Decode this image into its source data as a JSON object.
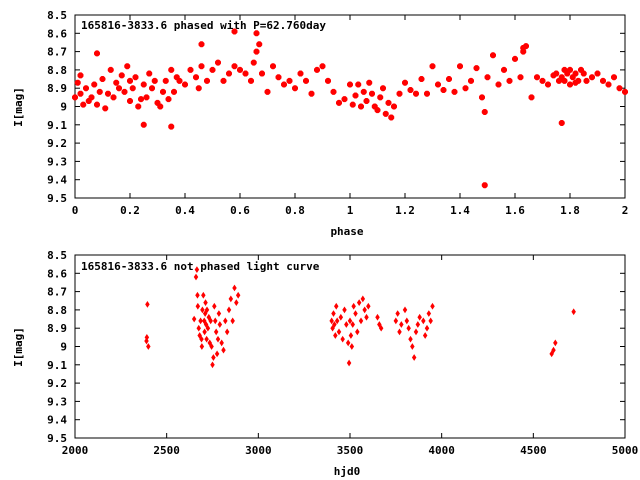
{
  "chart_data": [
    {
      "type": "scatter",
      "title": "165816-3833.6 phased with P=62.760day",
      "xlabel": "phase",
      "ylabel": "I[mag]",
      "xlim": [
        0,
        2
      ],
      "ylim": [
        9.5,
        8.5
      ],
      "y_inverted": true,
      "xticks": [
        "0",
        "0.2",
        "0.4",
        "0.6",
        "0.8",
        "1",
        "1.2",
        "1.4",
        "1.6",
        "1.8",
        "2"
      ],
      "yticks": [
        "8.5",
        "8.6",
        "8.7",
        "8.8",
        "8.9",
        "9",
        "9.1",
        "9.2",
        "9.3",
        "9.4",
        "9.5"
      ],
      "marker": "star",
      "color": "#ff0000",
      "series": [
        {
          "x": [
            0.0,
            0.01,
            0.02,
            0.02,
            0.03,
            0.04,
            0.05,
            0.06,
            0.07,
            0.08,
            0.08,
            0.09,
            0.1,
            0.11,
            0.12,
            0.13,
            0.14,
            0.15,
            0.16,
            0.17,
            0.18,
            0.19,
            0.2,
            0.2,
            0.21,
            0.22,
            0.23,
            0.24,
            0.25,
            0.26,
            0.27,
            0.28,
            0.29,
            0.3,
            0.31,
            0.32,
            0.33,
            0.34,
            0.35,
            0.36,
            0.37,
            0.38,
            0.4,
            0.42,
            0.44,
            0.45,
            0.46,
            0.48,
            0.5,
            0.52,
            0.54,
            0.56,
            0.58,
            0.6,
            0.62,
            0.64,
            0.65,
            0.66,
            0.67,
            0.68,
            0.7,
            0.72,
            0.74,
            0.76,
            0.78,
            0.8,
            0.82,
            0.84,
            0.86,
            0.88,
            0.9,
            0.92,
            0.94,
            0.96,
            0.98,
            1.0,
            1.01,
            1.02,
            1.03,
            1.04,
            1.05,
            1.06,
            1.07,
            1.08,
            1.09,
            1.1,
            1.11,
            1.12,
            1.13,
            1.14,
            1.15,
            1.16,
            1.18,
            1.2,
            1.22,
            1.24,
            1.26,
            1.28,
            1.3,
            1.32,
            1.34,
            1.36,
            1.38,
            1.4,
            1.42,
            1.44,
            1.46,
            1.48,
            1.49,
            1.5,
            1.52,
            1.54,
            1.56,
            1.58,
            1.6,
            1.62,
            1.63,
            1.64,
            1.66,
            1.68,
            1.7,
            1.72,
            1.74,
            1.75,
            1.76,
            1.77,
            1.78,
            1.78,
            1.79,
            1.8,
            1.8,
            1.81,
            1.82,
            1.82,
            1.83,
            1.84,
            1.85,
            1.86,
            1.88,
            1.9,
            1.92,
            1.94,
            1.96,
            1.98,
            2.0,
            0.25,
            0.35,
            0.58,
            0.46,
            0.66,
            1.49,
            1.63,
            1.77
          ],
          "y": [
            8.95,
            8.87,
            8.93,
            8.83,
            8.99,
            8.9,
            8.97,
            8.95,
            8.88,
            8.99,
            8.71,
            8.92,
            8.85,
            9.01,
            8.93,
            8.8,
            8.95,
            8.87,
            8.9,
            8.83,
            8.92,
            8.78,
            8.86,
            8.97,
            8.9,
            8.84,
            9.0,
            8.96,
            8.88,
            8.95,
            8.82,
            8.9,
            8.86,
            8.98,
            9.0,
            8.92,
            8.86,
            8.96,
            8.8,
            8.92,
            8.84,
            8.86,
            8.88,
            8.8,
            8.84,
            8.9,
            8.78,
            8.86,
            8.8,
            8.76,
            8.86,
            8.82,
            8.78,
            8.8,
            8.82,
            8.86,
            8.76,
            8.7,
            8.66,
            8.82,
            8.92,
            8.78,
            8.84,
            8.88,
            8.86,
            8.9,
            8.82,
            8.86,
            8.93,
            8.8,
            8.78,
            8.86,
            8.92,
            8.98,
            8.96,
            8.88,
            8.99,
            8.94,
            8.88,
            9.0,
            8.92,
            8.97,
            8.87,
            8.93,
            9.0,
            9.02,
            8.95,
            8.9,
            9.04,
            8.98,
            9.06,
            9.0,
            8.93,
            8.87,
            8.91,
            8.93,
            8.85,
            8.93,
            8.78,
            8.88,
            8.91,
            8.85,
            8.92,
            8.78,
            8.9,
            8.86,
            8.79,
            8.95,
            9.03,
            8.84,
            8.72,
            8.88,
            8.8,
            8.86,
            8.74,
            8.84,
            8.7,
            8.67,
            8.95,
            8.84,
            8.86,
            8.88,
            8.83,
            8.82,
            8.86,
            8.84,
            8.8,
            8.86,
            8.82,
            8.88,
            8.8,
            8.84,
            8.87,
            8.82,
            8.86,
            8.8,
            8.82,
            8.86,
            8.84,
            8.82,
            8.86,
            8.88,
            8.84,
            8.9,
            8.92,
            9.1,
            9.11,
            8.59,
            8.66,
            8.6,
            9.43,
            8.68,
            9.09
          ]
        }
      ]
    },
    {
      "type": "scatter",
      "title": "165816-3833.6 not phased light curve",
      "xlabel": "hjd0",
      "ylabel": "I[mag]",
      "xlim": [
        2000,
        5000
      ],
      "ylim": [
        9.5,
        8.5
      ],
      "y_inverted": true,
      "xticks": [
        "2000",
        "2500",
        "3000",
        "3500",
        "4000",
        "4500",
        "5000"
      ],
      "yticks": [
        "8.5",
        "8.6",
        "8.7",
        "8.8",
        "8.9",
        "9",
        "9.1",
        "9.2",
        "9.3",
        "9.4",
        "9.5"
      ],
      "marker": "diamond",
      "color": "#ff0000",
      "series": [
        {
          "x": [
            2390,
            2392,
            2395,
            2400,
            2650,
            2660,
            2665,
            2668,
            2670,
            2675,
            2680,
            2685,
            2690,
            2692,
            2695,
            2700,
            2705,
            2707,
            2710,
            2712,
            2715,
            2718,
            2720,
            2725,
            2730,
            2735,
            2740,
            2745,
            2750,
            2755,
            2760,
            2765,
            2770,
            2775,
            2780,
            2785,
            2790,
            2800,
            2810,
            2820,
            2830,
            2840,
            2850,
            2860,
            2870,
            2880,
            2890,
            3400,
            3405,
            3410,
            3415,
            3420,
            3425,
            3430,
            3440,
            3450,
            3460,
            3470,
            3480,
            3490,
            3495,
            3500,
            3505,
            3510,
            3515,
            3520,
            3530,
            3540,
            3550,
            3560,
            3570,
            3580,
            3590,
            3600,
            3650,
            3660,
            3670,
            3750,
            3760,
            3770,
            3780,
            3800,
            3810,
            3820,
            3830,
            3840,
            3850,
            3860,
            3870,
            3880,
            3900,
            3910,
            3920,
            3930,
            3940,
            3950,
            4600,
            4610,
            4620,
            4720
          ],
          "y": [
            8.97,
            8.95,
            8.77,
            9.0,
            8.85,
            8.62,
            8.58,
            8.72,
            8.78,
            8.9,
            8.94,
            8.86,
            8.96,
            9.0,
            8.8,
            8.72,
            8.86,
            8.92,
            8.82,
            8.76,
            8.88,
            8.96,
            8.8,
            8.9,
            8.84,
            8.98,
            8.86,
            9.0,
            9.1,
            9.06,
            8.78,
            8.86,
            8.92,
            9.04,
            8.96,
            8.82,
            8.88,
            8.98,
            9.02,
            8.86,
            8.92,
            8.8,
            8.74,
            8.86,
            8.68,
            8.76,
            8.72,
            8.86,
            8.9,
            8.82,
            8.88,
            8.94,
            8.78,
            8.86,
            8.92,
            8.84,
            8.96,
            8.8,
            8.88,
            8.98,
            9.09,
            8.86,
            8.94,
            9.0,
            8.88,
            8.78,
            8.82,
            8.92,
            8.76,
            8.86,
            8.74,
            8.8,
            8.84,
            8.78,
            8.84,
            8.88,
            8.9,
            8.86,
            8.82,
            8.92,
            8.88,
            8.8,
            8.86,
            8.9,
            8.96,
            9.0,
            9.06,
            8.92,
            8.88,
            8.84,
            8.86,
            8.94,
            8.9,
            8.82,
            8.86,
            8.78,
            9.04,
            9.02,
            8.98,
            8.81
          ]
        }
      ]
    }
  ]
}
